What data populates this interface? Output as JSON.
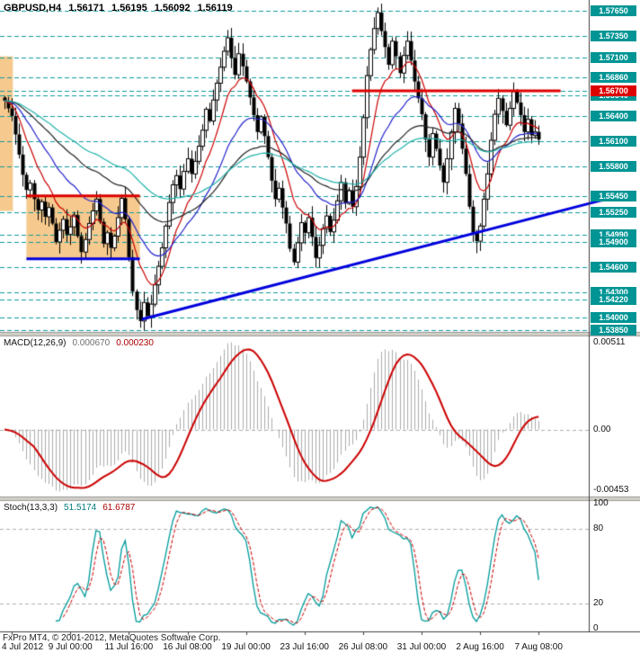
{
  "window": {
    "symbol": "GBPUSD,H4",
    "ohlc": [
      "1.56171",
      "1.56195",
      "1.56092",
      "1.56119"
    ]
  },
  "footer": {
    "copyright": "FxPro MT4, © 2001-2012, MetaQuotes Software Corp."
  },
  "colors": {
    "level_line": "#0e9a9a",
    "teal_box": "#009494",
    "red_box": "#dd0000",
    "panel_sep": "#d4d0c8",
    "trend_blue": "#0000dd",
    "resistance_red": "#dd0000"
  },
  "chart_data": [
    {
      "type": "candlestick",
      "title": "GBPUSD,H4",
      "timeframe": "H4",
      "open_first": 1.5662,
      "closes": [
        1.5658,
        1.5649,
        1.564,
        1.5618,
        1.5594,
        1.557,
        1.5552,
        1.556,
        1.5541,
        1.5528,
        1.5538,
        1.552,
        1.5531,
        1.5512,
        1.549,
        1.5504,
        1.5517,
        1.5499,
        1.5508,
        1.5522,
        1.5497,
        1.5478,
        1.5493,
        1.5512,
        1.5527,
        1.5541,
        1.5514,
        1.5488,
        1.5501,
        1.5483,
        1.5497,
        1.5519,
        1.5542,
        1.5517,
        1.5472,
        1.5431,
        1.5409,
        1.5396,
        1.5418,
        1.5402,
        1.5416,
        1.5439,
        1.5461,
        1.5483,
        1.5509,
        1.5537,
        1.5558,
        1.5569,
        1.5553,
        1.5574,
        1.5589,
        1.5571,
        1.5586,
        1.5604,
        1.5623,
        1.5648,
        1.5634,
        1.5659,
        1.5679,
        1.5698,
        1.5717,
        1.5733,
        1.5709,
        1.5689,
        1.5714,
        1.5699,
        1.5681,
        1.5662,
        1.5641,
        1.5621,
        1.5639,
        1.5616,
        1.5591,
        1.5563,
        1.5541,
        1.5554,
        1.5531,
        1.5512,
        1.5482,
        1.5466,
        1.5489,
        1.5513,
        1.5501,
        1.5519,
        1.5496,
        1.5471,
        1.5486,
        1.5506,
        1.5521,
        1.5502,
        1.5516,
        1.5539,
        1.5561,
        1.5536,
        1.5551,
        1.5532,
        1.5556,
        1.5591,
        1.5638,
        1.5688,
        1.5719,
        1.5744,
        1.5763,
        1.5741,
        1.5722,
        1.5701,
        1.5729,
        1.5711,
        1.5691,
        1.5712,
        1.5729,
        1.5706,
        1.5681,
        1.5661,
        1.5642,
        1.5612,
        1.5591,
        1.5619,
        1.5601,
        1.5581,
        1.5561,
        1.5589,
        1.5621,
        1.5649,
        1.5631,
        1.5601,
        1.5571,
        1.5532,
        1.5501,
        1.5491,
        1.5509,
        1.5541,
        1.5571,
        1.5611,
        1.5642,
        1.5661,
        1.5646,
        1.5629,
        1.5649,
        1.5669,
        1.5656,
        1.5641,
        1.5621,
        1.5636,
        1.5617,
        1.5621,
        1.56119
      ],
      "price_range": {
        "max": 1.5778,
        "min": 1.5383
      },
      "levels": [
        {
          "price": 1.5765,
          "label": "1.57650",
          "box": "teal"
        },
        {
          "price": 1.5735,
          "label": "1.57350",
          "box": "teal"
        },
        {
          "price": 1.571,
          "label": "1.57100",
          "box": "teal"
        },
        {
          "price": 1.5686,
          "label": "1.56860",
          "box": "teal"
        },
        {
          "price": 1.5664,
          "label": "1.56640",
          "box": "teal"
        },
        {
          "price": 1.567,
          "label": "1.56700",
          "box": "red"
        },
        {
          "price": 1.564,
          "label": "1.56400",
          "box": "teal"
        },
        {
          "price": 1.561,
          "label": "1.56100",
          "box": "teal"
        },
        {
          "price": 1.558,
          "label": "1.55800",
          "box": "teal"
        },
        {
          "price": 1.5545,
          "label": "1.55450",
          "box": "teal"
        },
        {
          "price": 1.5525,
          "label": "1.55250",
          "box": "teal"
        },
        {
          "price": 1.5499,
          "label": "1.54990",
          "box": "teal"
        },
        {
          "price": 1.549,
          "label": "1.54900",
          "box": "teal"
        },
        {
          "price": 1.546,
          "label": "1.54600",
          "box": "teal"
        },
        {
          "price": 1.543,
          "label": "1.54300",
          "box": "teal"
        },
        {
          "price": 1.5422,
          "label": "1.54220",
          "box": "teal"
        },
        {
          "price": 1.54,
          "label": "1.54000",
          "box": "teal"
        },
        {
          "price": 1.5385,
          "label": "1.53850",
          "box": "teal"
        }
      ],
      "segments": [
        {
          "name": "resistance-line",
          "price": 1.567,
          "from_bar": 95,
          "to_bar": 152,
          "color": "#dd0000",
          "width": 3
        },
        {
          "name": "left-range-resistance",
          "price": 1.5545,
          "from_bar": 6,
          "to_bar": 37,
          "color": "#dd0000",
          "width": 3
        },
        {
          "name": "left-range-support",
          "price": 1.547,
          "from_bar": 6,
          "to_bar": 37,
          "color": "#0000dd",
          "width": 3
        }
      ],
      "trendline": {
        "from_bar": 37.5,
        "from_price": 1.5398,
        "to_bar": 168,
        "to_price": 1.5545,
        "color": "#0000dd",
        "width": 3
      },
      "rectangles": [
        {
          "from_bar": -3,
          "to_bar": 2.3,
          "top": 1.5711,
          "bottom": 1.5527,
          "fill": "#f6c98e"
        },
        {
          "from_bar": 6,
          "to_bar": 37,
          "top": 1.5545,
          "bottom": 1.547,
          "fill": "#f6c98e"
        }
      ],
      "moving_averages": [
        {
          "period": 10,
          "color": "#cc0000"
        },
        {
          "period": 24,
          "color": "#2222cc"
        },
        {
          "period": 48,
          "color": "#222222"
        },
        {
          "period": 72,
          "color": "#20b2aa"
        }
      ],
      "x_labels": [
        {
          "bar": 2,
          "label": "4 Jul 2012"
        },
        {
          "bar": 18,
          "label": "9 Jul 00:00"
        },
        {
          "bar": 34,
          "label": "11 Jul 16:00"
        },
        {
          "bar": 50,
          "label": "16 Jul 08:00"
        },
        {
          "bar": 66,
          "label": "19 Jul 00:00"
        },
        {
          "bar": 82,
          "label": "23 Jul 16:00"
        },
        {
          "bar": 98,
          "label": "26 Jul 08:00"
        },
        {
          "bar": 114,
          "label": "31 Jul 00:00"
        },
        {
          "bar": 130,
          "label": "2 Aug 16:00"
        },
        {
          "bar": 146,
          "label": "7 Aug 08:00"
        }
      ]
    },
    {
      "type": "macd",
      "label": "MACD(12,26,9)",
      "params": [
        12,
        26,
        9
      ],
      "values": [
        "0.000670",
        "0.000230"
      ],
      "axis_labels": [
        {
          "pos": "top",
          "label": "0.00511"
        },
        {
          "pos": "zero",
          "label": "0.00"
        },
        {
          "pos": "bottom",
          "label": "-0.00453"
        }
      ],
      "histogram_color": "#ababab",
      "signal_color": "#cc0000"
    },
    {
      "type": "stochastic",
      "label": "Stoch(13,3,3)",
      "params": [
        13,
        3,
        3
      ],
      "values": [
        "51.5174",
        "61.6787"
      ],
      "levels": [
        80,
        20
      ],
      "axis_labels": [
        {
          "value": 100,
          "label": "100"
        },
        {
          "value": 80,
          "label": "80"
        },
        {
          "value": 20,
          "label": "20"
        },
        {
          "value": 0,
          "label": "0"
        }
      ],
      "main_color": "#009b9b",
      "signal_color": "#cc0000"
    }
  ]
}
